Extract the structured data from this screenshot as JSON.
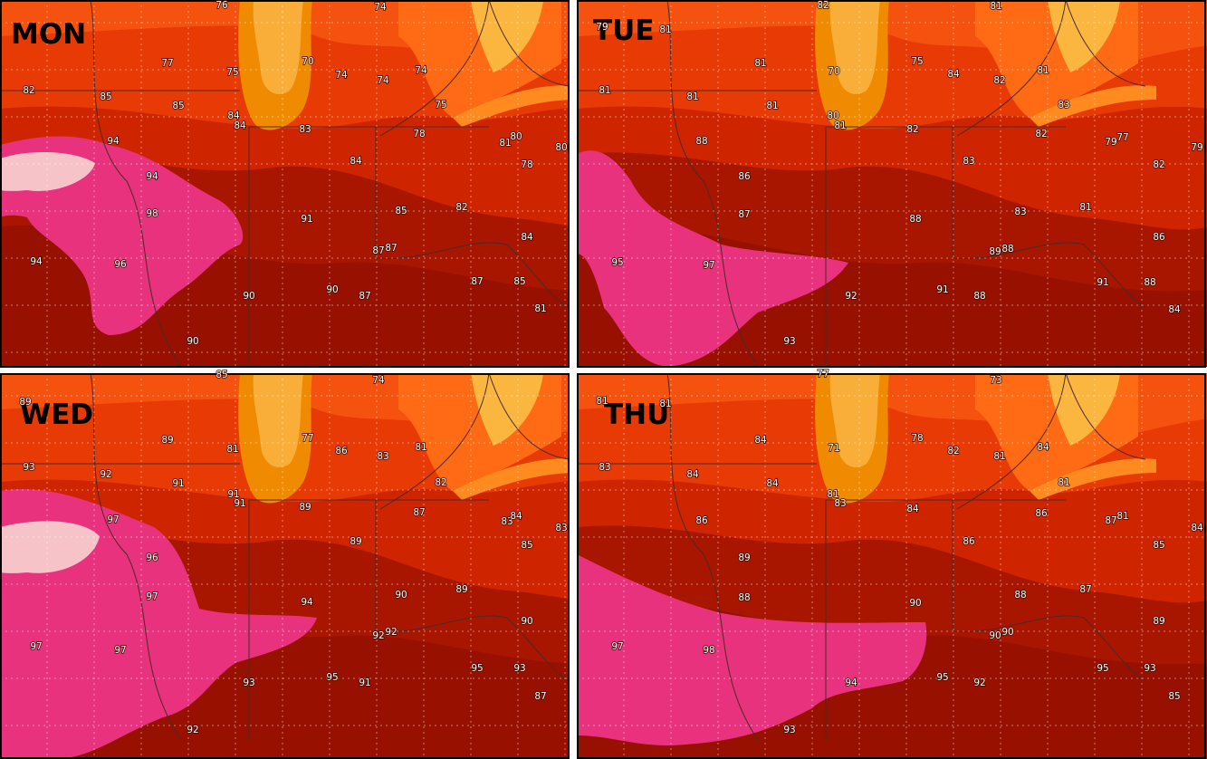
{
  "panels": [
    {
      "title": "MON",
      "labels": [
        76,
        74,
        77,
        70,
        74,
        74,
        74,
        75,
        82,
        85,
        85,
        84,
        84,
        75,
        83,
        78,
        80,
        81,
        80,
        94,
        84,
        78,
        94,
        98,
        91,
        85,
        82,
        84,
        87,
        87,
        94,
        96,
        87,
        85,
        90,
        90,
        87,
        81,
        90
      ]
    },
    {
      "title": "TUE",
      "labels": [
        82,
        81,
        79,
        81,
        81,
        70,
        75,
        84,
        82,
        81,
        81,
        81,
        81,
        80,
        81,
        83,
        82,
        82,
        79,
        77,
        79,
        88,
        83,
        82,
        86,
        87,
        88,
        83,
        81,
        86,
        89,
        88,
        95,
        97,
        92,
        91,
        88,
        91,
        88,
        84,
        93
      ]
    },
    {
      "title": "WED",
      "labels": [
        85,
        74,
        89,
        89,
        77,
        86,
        83,
        81,
        81,
        93,
        92,
        91,
        91,
        91,
        82,
        89,
        87,
        83,
        84,
        83,
        97,
        89,
        85,
        96,
        97,
        94,
        90,
        89,
        90,
        92,
        92,
        97,
        97,
        95,
        93,
        93,
        95,
        91,
        87,
        92
      ]
    },
    {
      "title": "THU",
      "labels": [
        77,
        73,
        81,
        81,
        84,
        71,
        78,
        82,
        81,
        84,
        83,
        84,
        84,
        81,
        83,
        81,
        84,
        86,
        87,
        81,
        84,
        86,
        86,
        85,
        89,
        88,
        90,
        88,
        87,
        89,
        90,
        90,
        97,
        98,
        94,
        95,
        92,
        95,
        93,
        85,
        93
      ]
    }
  ]
}
